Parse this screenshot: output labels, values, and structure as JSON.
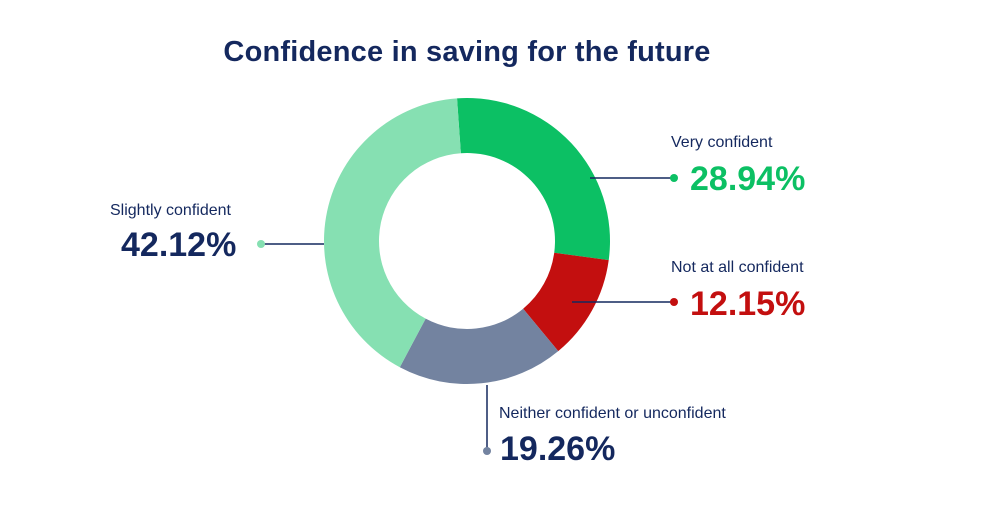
{
  "chart_data": {
    "type": "pie",
    "variant": "donut",
    "title": "Confidence in saving for the future",
    "slices": [
      {
        "label": "Very confident",
        "value": 28.94,
        "display": "28.94%",
        "color": "#0cc064",
        "value_color": "#0cc064"
      },
      {
        "label": "Not at all confident",
        "value": 12.15,
        "display": "12.15%",
        "color": "#c30f0f",
        "value_color": "#c30f0f"
      },
      {
        "label": "Neither confident or unconfident",
        "value": 19.26,
        "display": "19.26%",
        "color": "#7383a0",
        "value_color": "#14285e"
      },
      {
        "label": "Slightly confident",
        "value": 42.12,
        "display": "42.12%",
        "color": "#86e0b2",
        "value_color": "#14285e"
      }
    ]
  }
}
